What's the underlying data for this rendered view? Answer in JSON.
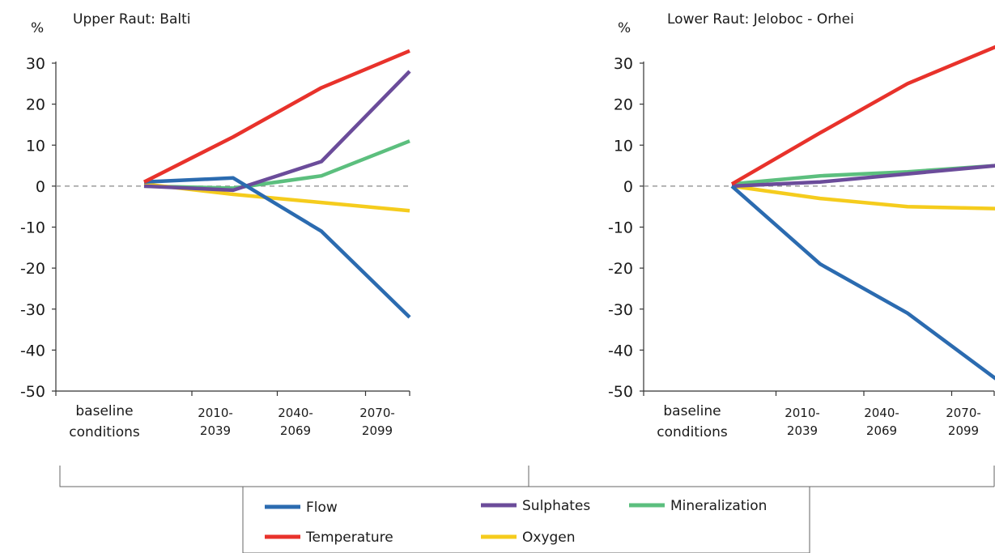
{
  "colors": {
    "Flow": "#2b6bb0",
    "Temperature": "#e8322b",
    "Sulphates": "#6b4c9a",
    "Mineralization": "#5cbf7e",
    "Oxygen": "#f5cc1d",
    "axis": "#333333",
    "baseline": "#888888"
  },
  "chart_data": [
    {
      "type": "line",
      "title": "Upper Raut: Balti",
      "ylabel": "%",
      "ylim": [
        -50,
        35
      ],
      "yticks": [
        30,
        20,
        10,
        0,
        -10,
        -20,
        -30,
        -40,
        -50
      ],
      "ytick_labels": [
        "30",
        "20",
        "10",
        "0",
        "-10",
        "-20",
        "-30",
        "-40",
        "-50"
      ],
      "categories": [
        "baseline conditions",
        "2010-2039",
        "2040-2069",
        "2070-2099"
      ],
      "category_labels": [
        [
          "baseline",
          "conditions"
        ],
        [
          "2010-",
          "2039"
        ],
        [
          "2040-",
          "2069"
        ],
        [
          "2070-",
          "2099"
        ]
      ],
      "grid": false,
      "zero_line": true,
      "series": [
        {
          "name": "Flow",
          "values": [
            1,
            2,
            -11,
            -32
          ]
        },
        {
          "name": "Temperature",
          "values": [
            1,
            12,
            24,
            33
          ]
        },
        {
          "name": "Sulphates",
          "values": [
            0,
            -1,
            6,
            28
          ]
        },
        {
          "name": "Mineralization",
          "values": [
            0,
            -0.5,
            2.5,
            11
          ]
        },
        {
          "name": "Oxygen",
          "values": [
            0.5,
            -2,
            -4,
            -6
          ]
        }
      ]
    },
    {
      "type": "line",
      "title": "Lower Raut: Jeloboc - Orhei",
      "ylabel": "%",
      "ylim": [
        -50,
        35
      ],
      "yticks": [
        30,
        20,
        10,
        0,
        -10,
        -20,
        -30,
        -40,
        -50
      ],
      "ytick_labels": [
        "30",
        "20",
        "10",
        "0",
        "-10",
        "-20",
        "-30",
        "-40",
        "-50"
      ],
      "categories": [
        "baseline conditions",
        "2010-2039",
        "2040-2069",
        "2070-2099"
      ],
      "category_labels": [
        [
          "baseline",
          "conditions"
        ],
        [
          "2010-",
          "2039"
        ],
        [
          "2040-",
          "2069"
        ],
        [
          "2070-",
          "2099"
        ]
      ],
      "grid": false,
      "zero_line": true,
      "series": [
        {
          "name": "Flow",
          "values": [
            0,
            -19,
            -31,
            -47
          ]
        },
        {
          "name": "Temperature",
          "values": [
            0.5,
            13,
            25,
            34
          ]
        },
        {
          "name": "Sulphates",
          "values": [
            0,
            1,
            3,
            5
          ]
        },
        {
          "name": "Mineralization",
          "values": [
            0.5,
            2.5,
            3.5,
            5
          ]
        },
        {
          "name": "Oxygen",
          "values": [
            0,
            -3,
            -5,
            -5.5
          ]
        }
      ]
    }
  ],
  "legend": {
    "placement": "bottom",
    "items": [
      "Flow",
      "Sulphates",
      "Mineralization",
      "Temperature",
      "Oxygen"
    ]
  }
}
